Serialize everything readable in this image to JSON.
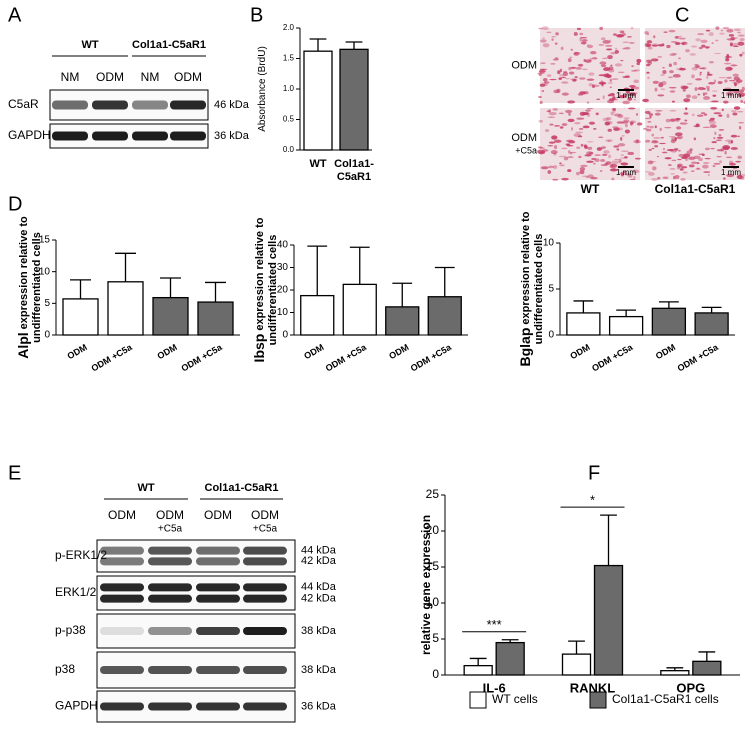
{
  "panel_labels": [
    "A",
    "B",
    "C",
    "D",
    "E",
    "F"
  ],
  "blot_a": {
    "groups": [
      "WT",
      "Col1a1-C5aR1"
    ],
    "lanes": [
      "NM",
      "ODM",
      "NM",
      "ODM"
    ],
    "rows": [
      {
        "label": "C5aR",
        "sizes": [
          "46 kDa"
        ]
      },
      {
        "label": "GAPDH",
        "sizes": [
          "36 kDa"
        ]
      }
    ]
  },
  "image_c": {
    "rows": [
      {
        "main": "ODM"
      },
      {
        "main": "ODM",
        "sub": "+C5a"
      }
    ],
    "columns": [
      "WT",
      "Col1a1-C5aR1"
    ],
    "scale": "1 mm"
  },
  "blot_e": {
    "groups": [
      "WT",
      "Col1a1-C5aR1"
    ],
    "lanes": [
      {
        "main": "ODM"
      },
      {
        "main": "ODM",
        "sub": "+C5a"
      },
      {
        "main": "ODM"
      },
      {
        "main": "ODM",
        "sub": "+C5a"
      }
    ],
    "rows": [
      {
        "label": "p-ERK1/2",
        "sizes": [
          "44 kDa",
          "42 kDa"
        ]
      },
      {
        "label": "ERK1/2",
        "sizes": [
          "44 kDa",
          "42 kDa"
        ]
      },
      {
        "label": "p-p38",
        "sizes": [
          "38 kDa"
        ]
      },
      {
        "label": "p38",
        "sizes": [
          "38 kDa"
        ]
      },
      {
        "label": "GAPDH",
        "sizes": [
          "36 kDa"
        ]
      }
    ]
  },
  "chart_data": [
    {
      "type": "bar",
      "ylabel": [
        "Absorbance (BrdU)"
      ],
      "categories": [
        "WT",
        [
          "Col1a1-",
          "C5aR1"
        ]
      ],
      "values": [
        1.62,
        1.65
      ],
      "errors": [
        0.2,
        0.12
      ],
      "colors": [
        "#ffffff",
        "#6b6b6b"
      ],
      "ylim": [
        0,
        2
      ],
      "yticks": [
        {
          "value": 0,
          "label": "0.0"
        },
        0.5,
        {
          "value": 1,
          "label": "1.0"
        },
        1.5,
        {
          "value": 2,
          "label": "2.0"
        }
      ]
    },
    {
      "type": "bar",
      "ylabel_gene": "Alpl",
      "ylabel": [
        "expression relative to",
        "undifferentiated cells"
      ],
      "categories": [
        "ODM",
        "ODM +C5a",
        "ODM",
        "ODM +C5a"
      ],
      "values": [
        5.7,
        8.4,
        5.9,
        5.2
      ],
      "errors": [
        3.0,
        4.5,
        3.1,
        3.1
      ],
      "colors": [
        "#ffffff",
        "#ffffff",
        "#6b6b6b",
        "#6b6b6b"
      ],
      "ylim": [
        0,
        15
      ],
      "yticks": [
        0,
        5,
        10,
        15
      ]
    },
    {
      "type": "bar",
      "ylabel_gene": "Ibsp",
      "ylabel": [
        "expression relative to",
        "undifferentiated cells"
      ],
      "categories": [
        "ODM",
        "ODM +C5a",
        "ODM",
        "ODM +C5a"
      ],
      "values": [
        17.5,
        22.5,
        12.5,
        17
      ],
      "errors": [
        22,
        16.5,
        10.5,
        13
      ],
      "colors": [
        "#ffffff",
        "#ffffff",
        "#6b6b6b",
        "#6b6b6b"
      ],
      "ylim": [
        0,
        40
      ],
      "yticks": [
        0,
        10,
        20,
        30,
        40
      ]
    },
    {
      "type": "bar",
      "ylabel_gene": "Bglap",
      "ylabel": [
        "expression relative to",
        "undifferentiated cells"
      ],
      "categories": [
        "ODM",
        "ODM +C5a",
        "ODM",
        "ODM +C5a"
      ],
      "values": [
        2.4,
        2.0,
        2.9,
        2.4
      ],
      "errors": [
        1.3,
        0.7,
        0.7,
        0.6
      ],
      "colors": [
        "#ffffff",
        "#ffffff",
        "#6b6b6b",
        "#6b6b6b"
      ],
      "ylim": [
        0,
        10
      ],
      "yticks": [
        0,
        5,
        10
      ]
    },
    {
      "type": "bar",
      "ylabel": [
        "relative gene expression"
      ],
      "categories": [
        "IL-6",
        "RANKL",
        "OPG"
      ],
      "series": [
        {
          "name": "WT cells",
          "color": "#ffffff",
          "values": [
            1.3,
            2.9,
            0.6
          ],
          "errors": [
            1.0,
            1.8,
            0.4
          ]
        },
        {
          "name": "Col1a1-C5aR1 cells",
          "color": "#6b6b6b",
          "values": [
            4.5,
            15.2,
            1.9
          ],
          "errors": [
            0.4,
            7.0,
            1.3
          ]
        }
      ],
      "annotations": [
        {
          "text": "***",
          "category": "IL-6"
        },
        {
          "text": "*",
          "category": "RANKL"
        }
      ],
      "legend": "bottom",
      "ylim": [
        0,
        25
      ],
      "yticks": [
        0,
        5,
        10,
        15,
        20,
        25
      ]
    }
  ]
}
